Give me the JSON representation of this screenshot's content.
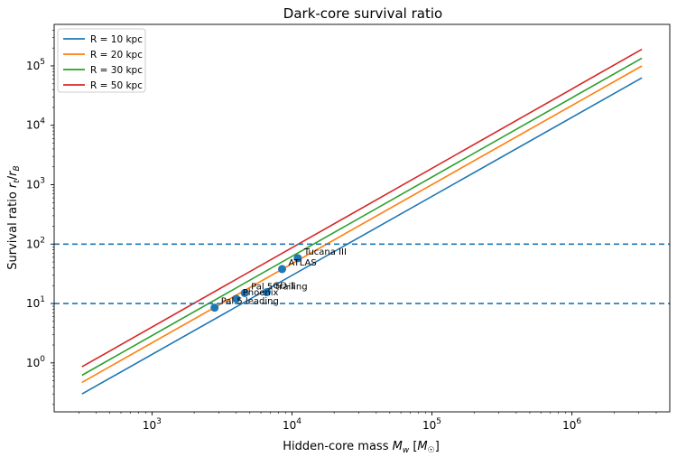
{
  "chart_data": {
    "type": "line",
    "title": "Dark-core survival ratio",
    "xlabel": "Hidden-core mass M_w [M_☉]",
    "ylabel": "Survival ratio r_t/r_B",
    "xscale": "log",
    "yscale": "log",
    "xlim": [
      200,
      5000000
    ],
    "ylim": [
      0.15,
      500000
    ],
    "grid": false,
    "legend": "top-left",
    "x_ticks": [
      1000,
      10000,
      100000,
      1000000
    ],
    "x_tick_labels": [
      [
        "10",
        "3"
      ],
      [
        "10",
        "4"
      ],
      [
        "10",
        "5"
      ],
      [
        "10",
        "6"
      ]
    ],
    "y_ticks": [
      1,
      10,
      100,
      1000,
      10000,
      100000
    ],
    "y_tick_labels": [
      [
        "10",
        "0"
      ],
      [
        "10",
        "1"
      ],
      [
        "10",
        "2"
      ],
      [
        "10",
        "3"
      ],
      [
        "10",
        "4"
      ],
      [
        "10",
        "5"
      ]
    ],
    "series": [
      {
        "name": "R = 10 kpc",
        "color": "#1f77b4",
        "x": [
          316,
          3160000
        ],
        "y": [
          0.3,
          63000
        ]
      },
      {
        "name": "R = 20 kpc",
        "color": "#ff7f0e",
        "x": [
          316,
          3160000
        ],
        "y": [
          0.47,
          100000
        ]
      },
      {
        "name": "R = 30 kpc",
        "color": "#2ca02c",
        "x": [
          316,
          3160000
        ],
        "y": [
          0.62,
          135000
        ]
      },
      {
        "name": "R = 50 kpc",
        "color": "#d62728",
        "x": [
          316,
          3160000
        ],
        "y": [
          0.86,
          190000
        ]
      }
    ],
    "hlines": [
      {
        "y": 100,
        "color": "#1f77b4",
        "style": "dashed"
      },
      {
        "y": 10,
        "color": "#1f77b4",
        "style": "dashed"
      }
    ],
    "points": [
      {
        "label": "Pal 5 leading",
        "x": 2800,
        "y": 8.5
      },
      {
        "label": "Phoenix",
        "x": 4000,
        "y": 12
      },
      {
        "label": "Pal 5 trailing",
        "x": 4600,
        "y": 15
      },
      {
        "label": "GD-1",
        "x": 6600,
        "y": 15.5
      },
      {
        "label": "ATLAS",
        "x": 8500,
        "y": 38
      },
      {
        "label": "Tucana III",
        "x": 11000,
        "y": 58
      }
    ],
    "point_color": "#1f77b4"
  }
}
